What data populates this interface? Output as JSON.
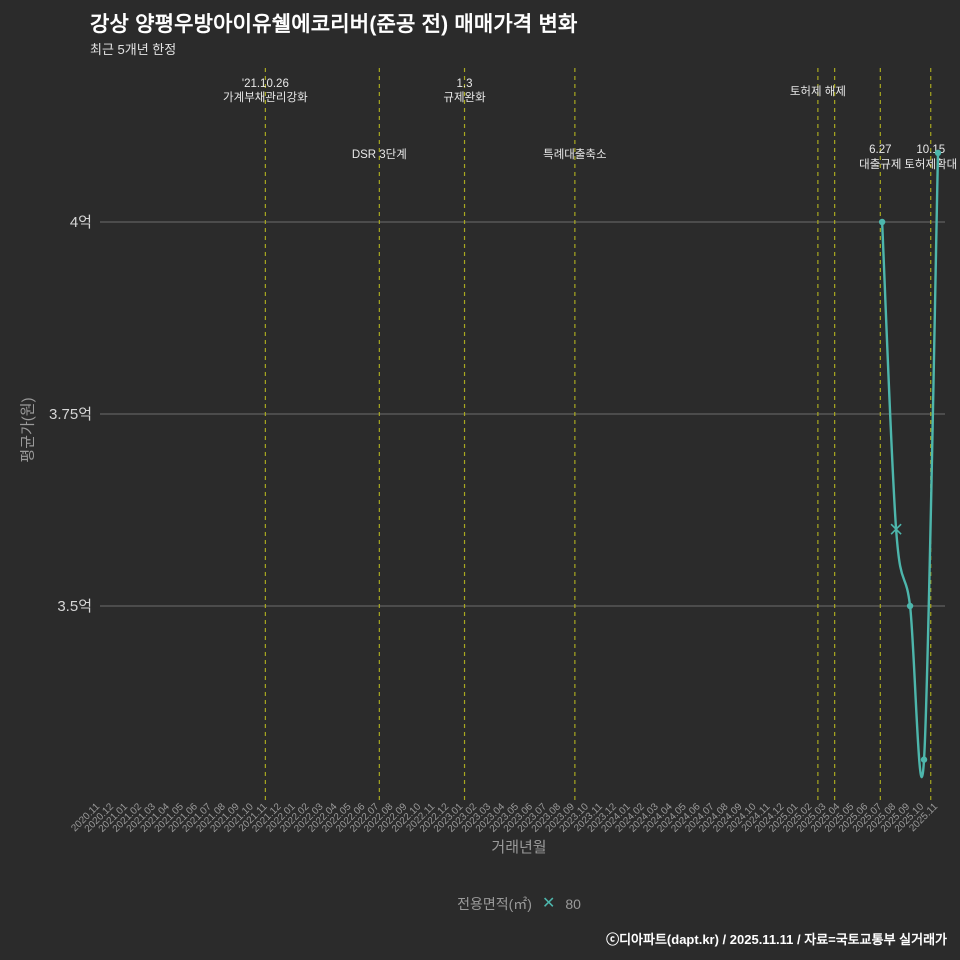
{
  "page": {
    "title": "강상 양평우방아이유쉘에코리버(준공 전) 매매가격 변화",
    "subtitle": "최근 5개년 한정",
    "footer_credit": "ⓒ디아파트(dapt.kr) / 2025.11.11 / 자료=국토교통부 실거래가"
  },
  "axes": {
    "x_label": "거래년월",
    "y_label": "평균가(원)",
    "y_ticks": [
      {
        "label": "4억",
        "value": 4.0
      },
      {
        "label": "3.75억",
        "value": 3.75
      },
      {
        "label": "3.5억",
        "value": 3.5
      }
    ]
  },
  "legend": {
    "label": "전용면적(㎡)",
    "marker": "x",
    "series_name": "80"
  },
  "colors": {
    "background": "#2b2b2b",
    "series": "#4db6ac",
    "event_line": "#a8a820",
    "gridline": "#6e6e6e",
    "y_tick_text": "#d6d6d6",
    "x_tick_text": "#9a9a9a",
    "annotation_text": "#e8e8e8"
  },
  "chart_data": {
    "type": "line",
    "title": "강상 양평우방아이유쉘에코리버(준공 전) 매매가격 변화",
    "unit": "억원",
    "ylim_eok": [
      3.25,
      4.2
    ],
    "grid": "horizontal-only",
    "legend_position": "bottom-center",
    "x_categories": [
      "2020.11",
      "2020.12",
      "2021.01",
      "2021.02",
      "2021.03",
      "2021.04",
      "2021.05",
      "2021.06",
      "2021.07",
      "2021.08",
      "2021.09",
      "2021.10",
      "2021.11",
      "2021.12",
      "2022.01",
      "2022.02",
      "2022.03",
      "2022.04",
      "2022.05",
      "2022.06",
      "2022.07",
      "2022.08",
      "2022.09",
      "2022.10",
      "2022.11",
      "2022.12",
      "2023.01",
      "2023.02",
      "2023.03",
      "2023.04",
      "2023.05",
      "2023.06",
      "2023.07",
      "2023.08",
      "2023.09",
      "2023.10",
      "2023.11",
      "2023.12",
      "2024.01",
      "2024.02",
      "2024.03",
      "2024.04",
      "2024.05",
      "2024.06",
      "2024.07",
      "2024.08",
      "2024.09",
      "2024.10",
      "2024.11",
      "2024.12",
      "2025.01",
      "2025.02",
      "2025.03",
      "2025.04",
      "2025.05",
      "2025.06",
      "2025.07",
      "2025.08",
      "2025.09",
      "2025.10",
      "2025.11"
    ],
    "series": [
      {
        "name": "80",
        "points": [
          {
            "month": "2025.07",
            "value_eok": 4.0,
            "marker": "dot"
          },
          {
            "month": "2025.08",
            "value_eok": 3.6,
            "marker": "x"
          },
          {
            "month": "2025.09",
            "value_eok": 3.5,
            "marker": "dot"
          },
          {
            "month": "2025.10",
            "value_eok": 3.3,
            "marker": "dot"
          },
          {
            "month": "2025.11",
            "value_eok": 4.09,
            "marker": "dot"
          }
        ]
      }
    ],
    "event_lines": [
      {
        "month_index": 11.84,
        "label_lines": [
          "'21.10.26",
          "가계부채관리강화"
        ],
        "label_row": "top"
      },
      {
        "month_index": 20.0,
        "label_lines": [
          "DSR 3단계"
        ],
        "label_row": "mid"
      },
      {
        "month_index": 26.1,
        "label_lines": [
          "1.3",
          "규제완화"
        ],
        "label_row": "top"
      },
      {
        "month_index": 34.0,
        "label_lines": [
          "특례대출축소"
        ],
        "label_row": "mid"
      },
      {
        "month_index": 51.4,
        "label_lines": [
          "토허제 해제"
        ],
        "label_row": "top"
      },
      {
        "month_index": 52.6,
        "label_lines": [],
        "label_row": "top"
      },
      {
        "month_index": 55.87,
        "label_lines": [
          "6.27",
          "대출규제"
        ],
        "label_row": "mid"
      },
      {
        "month_index": 59.48,
        "label_lines": [
          "10.15",
          "토허제확대"
        ],
        "label_row": "mid"
      }
    ]
  }
}
